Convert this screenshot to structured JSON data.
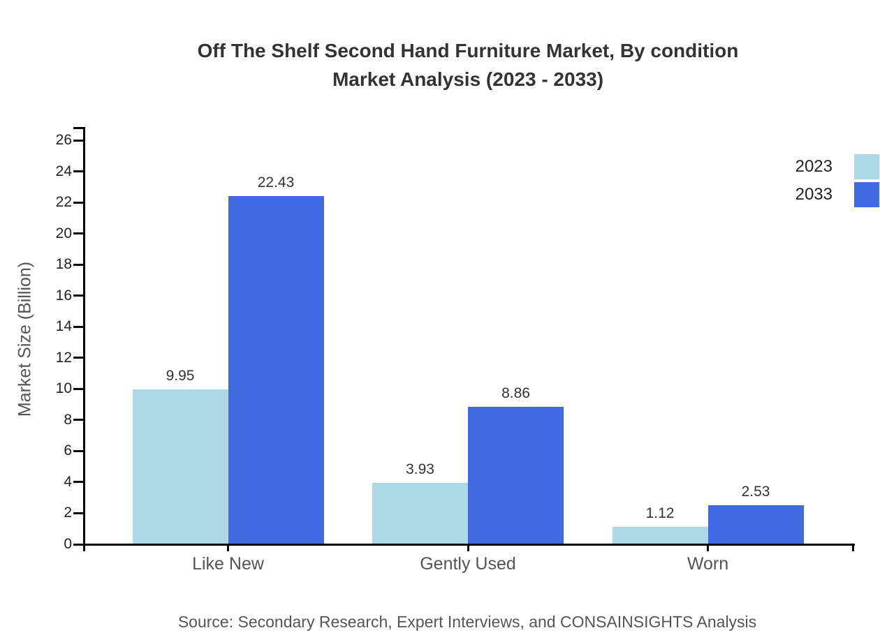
{
  "chart_data": {
    "type": "bar",
    "title": "Off The Shelf Second Hand Furniture Market, By condition Market Analysis (2023 - 2033)",
    "title_line1": "Off The Shelf Second Hand Furniture Market, By condition",
    "title_line2": "Market Analysis (2023 - 2033)",
    "categories": [
      "Like New",
      "Gently Used",
      "Worn"
    ],
    "series": [
      {
        "name": "2023",
        "color": "#ADD8E6",
        "values": [
          9.95,
          3.93,
          1.12
        ]
      },
      {
        "name": "2033",
        "color": "#4169E1",
        "values": [
          22.43,
          8.86,
          2.53
        ]
      }
    ],
    "value_labels": [
      "9.95",
      "22.43",
      "3.93",
      "8.86",
      "1.12",
      "2.53"
    ],
    "xlabel": "",
    "ylabel": "Market Size (Billion)",
    "ylim": [
      0,
      26
    ],
    "ytick_step": 2,
    "yticks": [
      0,
      2,
      4,
      6,
      8,
      10,
      12,
      14,
      16,
      18,
      20,
      22,
      24,
      26
    ],
    "grid": false,
    "legend_position": "top-right-edge",
    "source": "Source: Secondary Research, Expert Interviews, and CONSAINSIGHTS Analysis",
    "colors": {
      "series_2023": "#ADD8E6",
      "series_2033": "#4169E1",
      "axis": "#000000",
      "title_text": "#333333",
      "tick_text": "#222222",
      "muted_text": "#555555",
      "value_text": "#333333",
      "background": "#ffffff"
    }
  }
}
